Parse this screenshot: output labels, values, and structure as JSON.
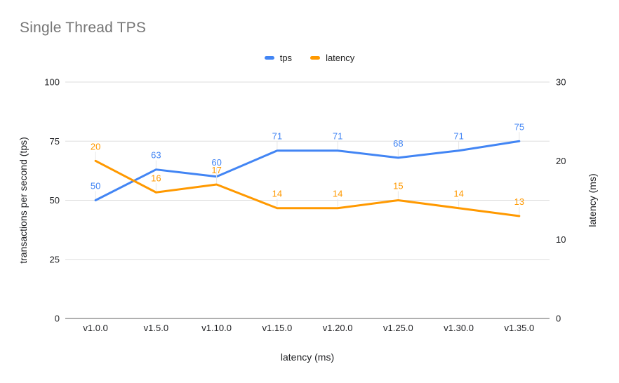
{
  "title": "Single Thread TPS",
  "legend": {
    "items": [
      {
        "label": "tps",
        "color": "#4285f4"
      },
      {
        "label": "latency",
        "color": "#ff9900"
      }
    ]
  },
  "colors": {
    "title_text": "#757575",
    "tick_text": "#202124",
    "axis_title_text": "#202124",
    "gridline": "#dddddd",
    "baseline": "#616161",
    "leader_line": "#e6e6e6",
    "background": "#ffffff",
    "series_blue": "#4285f4",
    "series_orange": "#ff9900"
  },
  "chart_data": {
    "type": "line",
    "title": "Single Thread TPS",
    "xlabel": "latency (ms)",
    "ylabel_left": "transactions per second (tps)",
    "ylabel_right": "latency (ms)",
    "categories": [
      "v1.0.0",
      "v1.5.0",
      "v1.10.0",
      "v1.15.0",
      "v1.20.0",
      "v1.25.0",
      "v1.30.0",
      "v1.35.0"
    ],
    "series": [
      {
        "name": "tps",
        "axis": "left",
        "color": "#4285f4",
        "values": [
          50,
          63,
          60,
          71,
          71,
          68,
          71,
          75
        ]
      },
      {
        "name": "latency",
        "axis": "right",
        "color": "#ff9900",
        "values": [
          20,
          16,
          17,
          14,
          14,
          15,
          14,
          13
        ]
      }
    ],
    "left_axis": {
      "ticks": [
        0,
        25,
        50,
        75,
        100
      ],
      "range": [
        0,
        100
      ]
    },
    "right_axis": {
      "ticks": [
        0,
        10,
        20,
        30
      ],
      "range": [
        0,
        30
      ]
    },
    "grid": true,
    "data_labels": true,
    "legend_position": "top"
  }
}
